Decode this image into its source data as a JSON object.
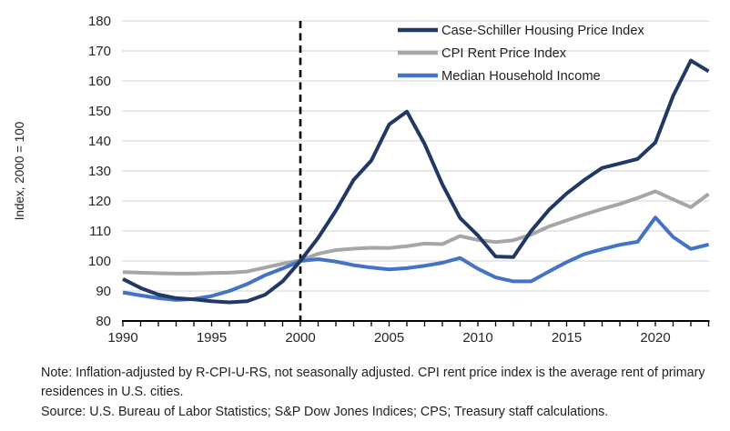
{
  "chart_data": {
    "type": "line",
    "title": "",
    "xlabel": "",
    "ylabel": "Index, 2000 = 100",
    "xlim": [
      1990,
      2023
    ],
    "ylim": [
      80,
      180
    ],
    "y_ticks": [
      80,
      90,
      100,
      110,
      120,
      130,
      140,
      150,
      160,
      170,
      180
    ],
    "x_ticks": [
      1990,
      1995,
      2000,
      2005,
      2010,
      2015,
      2020
    ],
    "x_minor_tick_step": 1,
    "grid": "horizontal",
    "gridline_color": "#d9d9d9",
    "axis_color": "#000000",
    "reference_line": {
      "x": 2000,
      "style": "dashed",
      "color": "#000000"
    },
    "legend_position": "top-right-inside",
    "x": [
      1990,
      1991,
      1992,
      1993,
      1994,
      1995,
      1996,
      1997,
      1998,
      1999,
      2000,
      2001,
      2002,
      2003,
      2004,
      2005,
      2006,
      2007,
      2008,
      2009,
      2010,
      2011,
      2012,
      2013,
      2014,
      2015,
      2016,
      2017,
      2018,
      2019,
      2020,
      2021,
      2022,
      2023
    ],
    "series": [
      {
        "name": "Case-Schiller Housing Price Index",
        "color": "#1f3864",
        "values": [
          94,
          91,
          88.8,
          87.6,
          87.2,
          86.6,
          86.2,
          86.6,
          88.7,
          93.2,
          100,
          107.7,
          116.8,
          127,
          133.5,
          145.5,
          149.8,
          139,
          125.5,
          114.3,
          108.5,
          101.5,
          101.3,
          110,
          117,
          122.5,
          127,
          131,
          132.5,
          134,
          139.5,
          155,
          166.8,
          163.2
        ]
      },
      {
        "name": "CPI Rent Price Index",
        "color": "#a6a6a6",
        "values": [
          96.3,
          96.1,
          95.9,
          95.8,
          95.8,
          96.0,
          96.1,
          96.5,
          97.8,
          99.1,
          100.2,
          102.4,
          103.6,
          104.1,
          104.4,
          104.3,
          104.9,
          105.8,
          105.6,
          108.3,
          107.0,
          106.3,
          106.9,
          108.8,
          111.5,
          113.5,
          115.5,
          117.3,
          119.0,
          121.0,
          123.2,
          120.5,
          117.9,
          122.3
        ]
      },
      {
        "name": "Median Household Income",
        "color": "#4472c4",
        "values": [
          89.5,
          88.5,
          87.6,
          87.0,
          87.3,
          88.3,
          90.0,
          92.3,
          95.2,
          97.5,
          100.0,
          100.6,
          99.8,
          98.6,
          97.8,
          97.2,
          97.6,
          98.4,
          99.4,
          101.0,
          97.4,
          94.5,
          93.2,
          93.2,
          96.5,
          99.6,
          102.3,
          103.9,
          105.4,
          106.4,
          114.5,
          108.0,
          104.0,
          105.5
        ]
      }
    ]
  },
  "notes": {
    "note": "Note: Inflation-adjusted by R-CPI-U-RS, not seasonally adjusted. CPI rent price index is the average rent of primary residences in U.S. cities.",
    "source": "Source: U.S. Bureau of Labor Statistics; S&P Dow Jones Indices; CPS; Treasury staff calculations."
  }
}
